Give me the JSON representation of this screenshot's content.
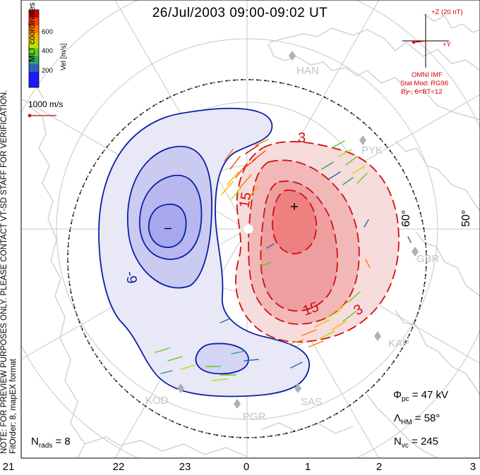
{
  "title": "26/Jul/2003 09:00-09:02 UT",
  "coordinates_label": "MLT coordinates",
  "notes": {
    "preview": "NOTE: FOR PREVIEW PURPOSES ONLY. PLEASE CONTACT VT-SD STAFF FOR VERIFICATION.",
    "fit": "FitOrder: 8, mapEX format"
  },
  "colorbar": {
    "label": "Vel [m/s]",
    "ticks": [
      "600",
      "400",
      "200"
    ],
    "colors": [
      "#d40000",
      "#ff3d00",
      "#ff7a00",
      "#ffb000",
      "#b8e000",
      "#5ccc1f",
      "#2f9e6e",
      "#2a66b0",
      "#1a1aff"
    ]
  },
  "reference_vector": "1000 m/s",
  "imf": {
    "z_label": "+Z (20 nT)",
    "y_label": "+Y",
    "source": "OMNI IMF",
    "model": "Stat Mod: RG96",
    "condition": "By-, 6<BT<12"
  },
  "stations": [
    "HAN",
    "PYK",
    "GBR",
    "KAP",
    "SAS",
    "PGR",
    "KOD"
  ],
  "latitude_labels": [
    "60°",
    "50°"
  ],
  "contours": {
    "negative_labels": [
      "-9"
    ],
    "positive_labels": [
      "3",
      "15",
      "15",
      "3"
    ],
    "min_marker": "−",
    "max_marker": "+"
  },
  "stats": {
    "phi_pc": {
      "symbol": "Φ",
      "sub": "pc",
      "value": "= 47 kV"
    },
    "lambda_hm": {
      "symbol": "Λ",
      "sub": "HM",
      "value": "= 58°"
    },
    "n_vc": {
      "symbol": "N",
      "sub": "vc",
      "value": "= 245"
    },
    "n_rads": {
      "symbol": "N",
      "sub": "rads",
      "value": "= 8"
    }
  },
  "mlt_ticks": [
    "21",
    "22",
    "23",
    "0",
    "1",
    "2",
    "3"
  ],
  "colors": {
    "negative_fill": "#e8e8f6",
    "negative_core": "#a8a8f0",
    "negative_line": "#0b1fa8",
    "positive_fill": "#f6d4d4",
    "positive_core": "#ee8080",
    "positive_line": "#d01010",
    "coast": "#c8c8c8",
    "grid": "#c8c8c8",
    "boundary_green": "#7fd34a"
  }
}
